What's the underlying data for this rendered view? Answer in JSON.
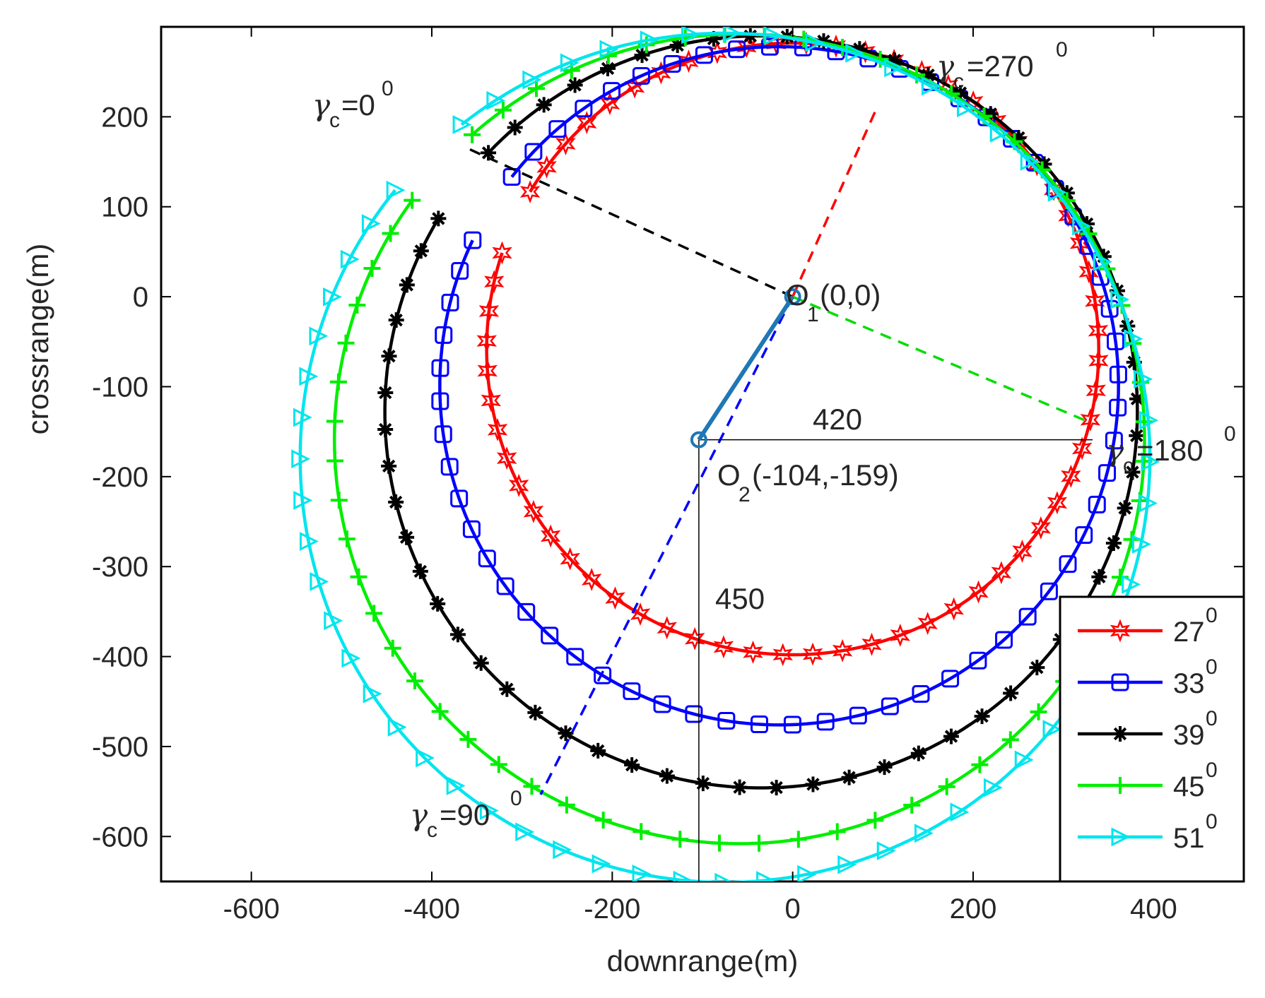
{
  "chart_data": {
    "type": "line",
    "xlabel": "downrange(m)",
    "ylabel": "crossrange(m)",
    "xlim": [
      -700,
      500
    ],
    "ylim": [
      -650,
      300
    ],
    "xticks": [
      -600,
      -400,
      -200,
      0,
      200,
      400
    ],
    "yticks": [
      -600,
      -500,
      -400,
      -300,
      -200,
      -100,
      0,
      100,
      200
    ],
    "grid": false,
    "legend_position": "bottom-right",
    "series": [
      {
        "name": "27",
        "sup": "0",
        "color": "#ff0000",
        "marker": "hexagram",
        "start": [
          -330,
          140
        ],
        "center": [
          0,
          -58
        ],
        "ry": 340
      },
      {
        "name": "33",
        "sup": "0",
        "color": "#0000ff",
        "marker": "square",
        "start": [
          -352,
          165
        ],
        "center": [
          -15,
          -99
        ],
        "ry": 377
      },
      {
        "name": "39",
        "sup": "0",
        "color": "#000000",
        "marker": "asterisk",
        "start": [
          -372,
          193
        ],
        "center": [
          -35,
          -128
        ],
        "ry": 418
      },
      {
        "name": "45",
        "sup": "0",
        "color": "#00ee00",
        "marker": "plus",
        "start": [
          -385,
          214
        ],
        "center": [
          -59,
          -158
        ],
        "ry": 450
      },
      {
        "name": "51",
        "sup": "0",
        "color": "#00e5ee",
        "marker": "triangle-right",
        "start": [
          -385,
          214
        ],
        "center": [
          -75,
          -179
        ],
        "ry": 472
      }
    ],
    "points": {
      "O1": {
        "x": 0,
        "y": 0,
        "label": "(0,0)",
        "prefix": "O",
        "sub": "1"
      },
      "O2": {
        "x": -104,
        "y": -159,
        "label": "(-104,-159)",
        "prefix": "O",
        "sub": "2"
      }
    },
    "annotations": {
      "width_value": "420",
      "height_value": "450",
      "gamma_symbol": "γ",
      "gamma_sub": "c",
      "gamma_0": {
        "text": "=0",
        "sup": "0"
      },
      "gamma_90": {
        "text": "=90",
        "sup": "0"
      },
      "gamma_180": {
        "text": "=180",
        "sup": "0"
      },
      "gamma_270": {
        "text": "=270",
        "sup": "0"
      }
    }
  }
}
